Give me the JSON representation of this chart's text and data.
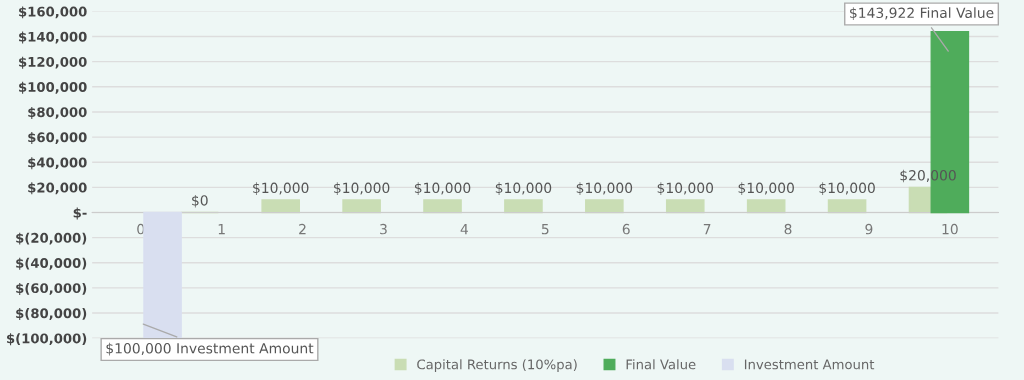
{
  "chart_data": {
    "type": "bar",
    "categories": [
      "0",
      "1",
      "2",
      "3",
      "4",
      "5",
      "6",
      "7",
      "8",
      "9",
      "10"
    ],
    "series": [
      {
        "name": "Capital Returns (10%pa)",
        "color": "#c9ddb4",
        "values": [
          null,
          0,
          10000,
          10000,
          10000,
          10000,
          10000,
          10000,
          10000,
          10000,
          20000
        ],
        "value_labels": [
          null,
          "$0",
          "$10,000",
          "$10,000",
          "$10,000",
          "$10,000",
          "$10,000",
          "$10,000",
          "$10,000",
          "$10,000",
          "$20,000"
        ]
      },
      {
        "name": "Final Value",
        "color": "#4fac5b",
        "values": [
          null,
          null,
          null,
          null,
          null,
          null,
          null,
          null,
          null,
          null,
          143922
        ]
      },
      {
        "name": "Investment Amount",
        "color": "#d9dff0",
        "values": [
          -100000,
          null,
          null,
          null,
          null,
          null,
          null,
          null,
          null,
          null,
          null
        ]
      }
    ],
    "ylim": [
      -100000,
      160000
    ],
    "yticks": [
      {
        "value": -100000,
        "label": "$(100,000)"
      },
      {
        "value": -80000,
        "label": "$(80,000)"
      },
      {
        "value": -60000,
        "label": "$(60,000)"
      },
      {
        "value": -40000,
        "label": "$(40,000)"
      },
      {
        "value": -20000,
        "label": "$(20,000)"
      },
      {
        "value": 0,
        "label": "$-"
      },
      {
        "value": 20000,
        "label": "$20,000"
      },
      {
        "value": 40000,
        "label": "$40,000"
      },
      {
        "value": 60000,
        "label": "$60,000"
      },
      {
        "value": 80000,
        "label": "$80,000"
      },
      {
        "value": 100000,
        "label": "$100,000"
      },
      {
        "value": 120000,
        "label": "$120,000"
      },
      {
        "value": 140000,
        "label": "$140,000"
      },
      {
        "value": 160000,
        "label": "$160,000"
      }
    ],
    "annotations": [
      {
        "text": "$143,922 Final Value",
        "x": "10",
        "y": 143922
      },
      {
        "text": "$100,000 Investment Amount",
        "x": "0",
        "y": -100000
      }
    ],
    "grid": "y",
    "legend": "bottom"
  }
}
